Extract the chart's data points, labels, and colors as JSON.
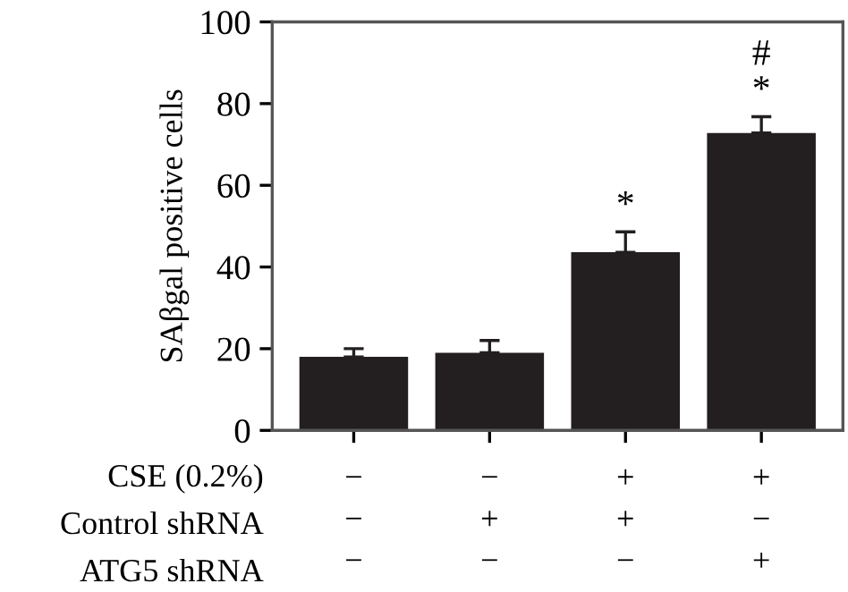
{
  "chart_data": {
    "type": "bar",
    "ylabel": "SAβgal positive cells",
    "categories": [
      "−\n−\n−",
      "−\n+\n−",
      "+\n+\n−",
      "+\n−\n+"
    ],
    "values": [
      18,
      19,
      43.6,
      72.8
    ],
    "errors": [
      2,
      3,
      5,
      4
    ],
    "color": "#231f20",
    "ylim": [
      0,
      100
    ],
    "yticks": [
      0,
      20,
      40,
      60,
      80,
      100
    ],
    "grid": false,
    "legend": false,
    "annotations": [
      "CSE (0.2%)",
      "Control shRNA",
      "ATG5 shRNA",
      "*",
      "*",
      "#"
    ]
  }
}
